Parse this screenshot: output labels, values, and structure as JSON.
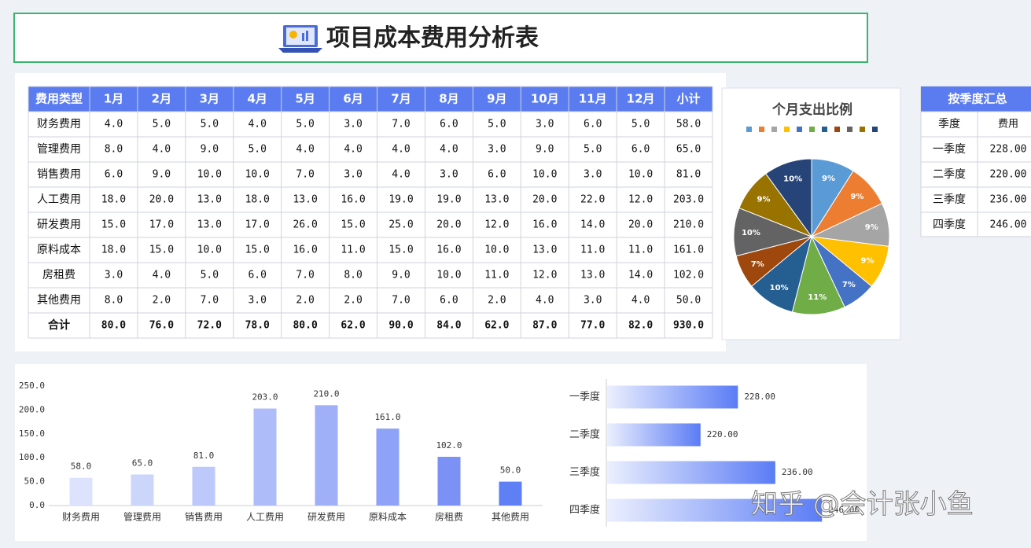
{
  "title": "项目成本费用分析表",
  "table": {
    "header": [
      "费用类型",
      "1月",
      "2月",
      "3月",
      "4月",
      "5月",
      "6月",
      "7月",
      "8月",
      "9月",
      "10月",
      "11月",
      "12月",
      "小计"
    ],
    "rows": [
      [
        "财务费用",
        "4.0",
        "5.0",
        "5.0",
        "4.0",
        "5.0",
        "3.0",
        "7.0",
        "6.0",
        "5.0",
        "3.0",
        "6.0",
        "5.0",
        "58.0"
      ],
      [
        "管理费用",
        "8.0",
        "4.0",
        "9.0",
        "5.0",
        "4.0",
        "4.0",
        "4.0",
        "4.0",
        "3.0",
        "9.0",
        "5.0",
        "6.0",
        "65.0"
      ],
      [
        "销售费用",
        "6.0",
        "9.0",
        "10.0",
        "10.0",
        "7.0",
        "3.0",
        "4.0",
        "3.0",
        "6.0",
        "10.0",
        "3.0",
        "10.0",
        "81.0"
      ],
      [
        "人工费用",
        "18.0",
        "20.0",
        "13.0",
        "18.0",
        "13.0",
        "16.0",
        "19.0",
        "19.0",
        "13.0",
        "20.0",
        "22.0",
        "12.0",
        "203.0"
      ],
      [
        "研发费用",
        "15.0",
        "17.0",
        "13.0",
        "17.0",
        "26.0",
        "15.0",
        "25.0",
        "20.0",
        "12.0",
        "16.0",
        "14.0",
        "20.0",
        "210.0"
      ],
      [
        "原料成本",
        "18.0",
        "15.0",
        "10.0",
        "15.0",
        "16.0",
        "11.0",
        "15.0",
        "16.0",
        "10.0",
        "13.0",
        "11.0",
        "11.0",
        "161.0"
      ],
      [
        "房租费",
        "3.0",
        "4.0",
        "5.0",
        "6.0",
        "7.0",
        "8.0",
        "9.0",
        "10.0",
        "11.0",
        "12.0",
        "13.0",
        "14.0",
        "102.0"
      ],
      [
        "其他费用",
        "8.0",
        "2.0",
        "7.0",
        "3.0",
        "2.0",
        "2.0",
        "7.0",
        "6.0",
        "2.0",
        "4.0",
        "3.0",
        "4.0",
        "50.0"
      ]
    ],
    "total": [
      "合计",
      "80.0",
      "76.0",
      "72.0",
      "78.0",
      "80.0",
      "62.0",
      "90.0",
      "84.0",
      "62.0",
      "87.0",
      "77.0",
      "82.0",
      "930.0"
    ]
  },
  "quarter_table": {
    "title": "按季度汇总",
    "header": [
      "季度",
      "费用"
    ],
    "rows": [
      [
        "一季度",
        "228.00"
      ],
      [
        "二季度",
        "220.00"
      ],
      [
        "三季度",
        "236.00"
      ],
      [
        "四季度",
        "246.00"
      ]
    ]
  },
  "chart_data": [
    {
      "type": "pie",
      "title": "个月支出比例",
      "values": [
        9,
        9,
        9,
        9,
        7,
        11,
        10,
        7,
        10,
        9,
        10
      ],
      "value_labels": [
        "9%",
        "9%",
        "9%",
        "9%",
        "7%",
        "11%",
        "10%",
        "7%",
        "10%",
        "9%",
        "10%"
      ],
      "colors": [
        "#5b9bd5",
        "#ed7d31",
        "#a5a5a5",
        "#ffc000",
        "#4472c4",
        "#70ad47",
        "#255e91",
        "#9e480e",
        "#636363",
        "#997300",
        "#264478"
      ],
      "legend": "top"
    },
    {
      "type": "bar",
      "categories": [
        "财务费用",
        "管理费用",
        "销售费用",
        "人工费用",
        "研发费用",
        "原料成本",
        "房租费",
        "其他费用"
      ],
      "values": [
        58,
        65,
        81,
        203,
        210,
        161,
        102,
        50
      ],
      "value_labels": [
        "58.0",
        "65.0",
        "81.0",
        "203.0",
        "210.0",
        "161.0",
        "102.0",
        "50.0"
      ],
      "colors": [
        "#dde3fc",
        "#ccd6fb",
        "#bcc9fa",
        "#aebdf9",
        "#9fb0f8",
        "#8ea2f7",
        "#7b91f6",
        "#5f7ff5"
      ],
      "ylim": [
        0,
        250
      ],
      "yticks": [
        {
          "value": 0,
          "label": "0.0"
        },
        {
          "value": 50,
          "label": "50.0"
        },
        {
          "value": 100,
          "label": "100.0"
        },
        {
          "value": 150,
          "label": "150.0"
        },
        {
          "value": 200,
          "label": "200.0"
        },
        {
          "value": 250,
          "label": "250.0"
        }
      ]
    },
    {
      "type": "barh",
      "categories": [
        "一季度",
        "二季度",
        "三季度",
        "四季度"
      ],
      "values": [
        228,
        220,
        236,
        246
      ],
      "value_labels": [
        "228.00",
        "220.00",
        "236.00",
        "246.00"
      ],
      "color": "#5b7cf5",
      "xlim": [
        200,
        250
      ]
    }
  ],
  "watermark": "知乎 @会计张小鱼"
}
